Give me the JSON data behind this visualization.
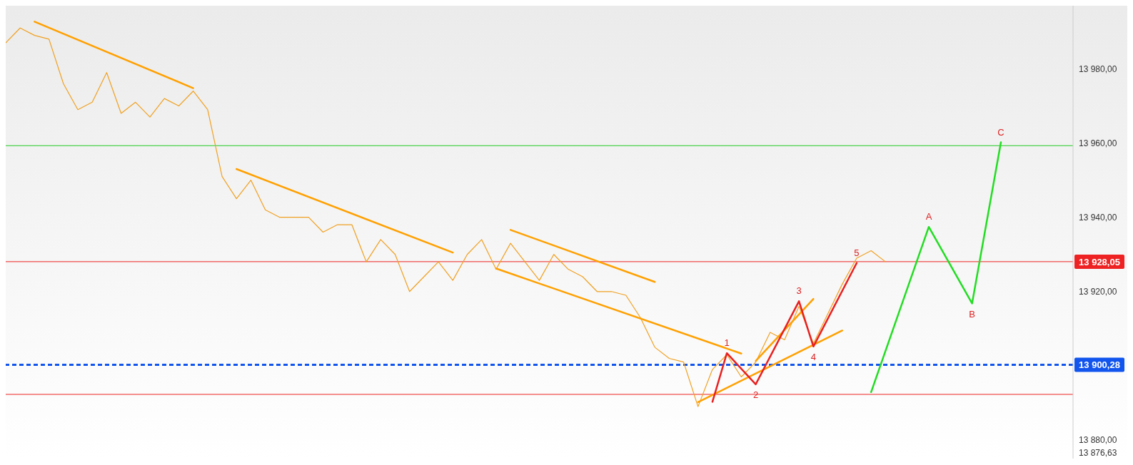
{
  "chart_data": {
    "type": "line",
    "categories": [
      null,
      null,
      null,
      null,
      null,
      null,
      null,
      null,
      null,
      null,
      null,
      null,
      null,
      null,
      null,
      null,
      null,
      null,
      null,
      null,
      null,
      null,
      null,
      null,
      null,
      null,
      null,
      null,
      null,
      null,
      null,
      null,
      null,
      null,
      null,
      null,
      null,
      null,
      null,
      null,
      null,
      null,
      null,
      null,
      null,
      null,
      null,
      null,
      null,
      null,
      null,
      null,
      null,
      null,
      null,
      null,
      null,
      null,
      null,
      null,
      null,
      null,
      null,
      null,
      null,
      null,
      null,
      null,
      null,
      null,
      null,
      null,
      null,
      null,
      null
    ],
    "ylim": [
      13875,
      13997
    ],
    "yticks": [
      {
        "value": 13876.63,
        "label": "13 876,63"
      },
      {
        "value": 13880,
        "label": "13 880,00"
      },
      {
        "value": 13900,
        "label": null
      },
      {
        "value": 13920,
        "label": "13 920,00"
      },
      {
        "value": 13940,
        "label": "13 940,00"
      },
      {
        "value": 13960,
        "label": "13 960,00"
      },
      {
        "value": 13980,
        "label": "13 980,00"
      }
    ],
    "tick_labels": "y",
    "marker": "none",
    "series": [
      {
        "color": "#f0a020",
        "values": [
          13987,
          13991,
          13989,
          13988,
          13976,
          13969,
          13971,
          13979,
          13968,
          13971,
          13967,
          13972,
          13970,
          13974,
          13969,
          13951,
          13945,
          13950,
          13942,
          13940,
          13940,
          13940,
          13936,
          13938,
          13938,
          13928,
          13934,
          13930,
          13920,
          13924,
          13928,
          13923,
          13930,
          13934,
          13926,
          13933,
          13928,
          13923,
          13930,
          13926,
          13924,
          13920,
          13920,
          13919,
          13913,
          13905,
          13902,
          13901,
          13889,
          13899,
          13903,
          13897,
          13901,
          13909,
          13907,
          13916,
          13906,
          13914,
          13922,
          13929,
          13931,
          13928,
          null,
          null,
          null,
          null,
          null,
          null,
          null,
          null,
          null,
          null,
          null,
          null,
          null
        ]
      },
      {
        "color": "#ffa000",
        "values": [
          null,
          null,
          13992.7,
          null,
          null,
          null,
          null,
          null,
          null,
          null,
          null,
          null,
          null,
          13974.8,
          null,
          null,
          null,
          null,
          null,
          null,
          null,
          null,
          null,
          null,
          null,
          null,
          null,
          null,
          null,
          null,
          null,
          null,
          null,
          null,
          null,
          null,
          null,
          null,
          null,
          null,
          null,
          null,
          null,
          null,
          null,
          null,
          null,
          null,
          null,
          null,
          null,
          null,
          null,
          null,
          null,
          null,
          null,
          null,
          null,
          null,
          null,
          null,
          null,
          null,
          null,
          null,
          null,
          null,
          null,
          null,
          null,
          null,
          null,
          null,
          null
        ]
      },
      {
        "color": "#ffa000",
        "values": [
          null,
          null,
          null,
          null,
          null,
          null,
          null,
          null,
          null,
          null,
          null,
          null,
          null,
          null,
          null,
          null,
          13953,
          null,
          null,
          null,
          null,
          null,
          null,
          null,
          null,
          null,
          null,
          null,
          null,
          null,
          null,
          13930.5,
          null,
          null,
          null,
          null,
          null,
          null,
          null,
          null,
          null,
          null,
          null,
          null,
          null,
          null,
          null,
          null,
          null,
          null,
          null,
          null,
          null,
          null,
          null,
          null,
          null,
          null,
          null,
          null,
          null,
          null,
          null,
          null,
          null,
          null,
          null,
          null,
          null,
          null,
          null,
          null,
          null,
          null,
          null
        ]
      },
      {
        "color": "#ffa000",
        "values": [
          null,
          null,
          null,
          null,
          null,
          null,
          null,
          null,
          null,
          null,
          null,
          null,
          null,
          null,
          null,
          null,
          null,
          null,
          null,
          null,
          null,
          null,
          null,
          null,
          null,
          null,
          null,
          null,
          null,
          null,
          null,
          null,
          null,
          null,
          null,
          13936.6,
          null,
          null,
          null,
          null,
          null,
          null,
          null,
          null,
          null,
          13922.6,
          null,
          null,
          null,
          null,
          null,
          null,
          null,
          null,
          null,
          null,
          null,
          null,
          null,
          null,
          null,
          null,
          null,
          null,
          null,
          null,
          null,
          null,
          null,
          null,
          null,
          null,
          null,
          null,
          null
        ]
      },
      {
        "color": "#ffa000",
        "values": [
          null,
          null,
          null,
          null,
          null,
          null,
          null,
          null,
          null,
          null,
          null,
          null,
          null,
          null,
          null,
          null,
          null,
          null,
          null,
          null,
          null,
          null,
          null,
          null,
          null,
          null,
          null,
          null,
          null,
          null,
          null,
          null,
          null,
          null,
          13926.2,
          null,
          null,
          null,
          null,
          null,
          null,
          null,
          null,
          null,
          null,
          null,
          null,
          null,
          null,
          null,
          null,
          13903.3,
          null,
          null,
          null,
          null,
          null,
          null,
          null,
          null,
          null,
          null,
          null,
          null,
          null,
          null,
          null,
          null,
          null,
          null,
          null,
          null,
          null,
          null,
          null
        ]
      },
      {
        "color": "#ffa000",
        "values": [
          null,
          null,
          null,
          null,
          null,
          null,
          null,
          null,
          null,
          null,
          null,
          null,
          null,
          null,
          null,
          null,
          null,
          null,
          null,
          null,
          null,
          null,
          null,
          null,
          null,
          null,
          null,
          null,
          null,
          null,
          null,
          null,
          null,
          null,
          null,
          null,
          null,
          null,
          null,
          null,
          null,
          null,
          null,
          null,
          null,
          null,
          null,
          null,
          13890.2,
          null,
          null,
          null,
          null,
          null,
          null,
          null,
          null,
          null,
          13909.5,
          null,
          null,
          null,
          null,
          null,
          null,
          null,
          null,
          null,
          null,
          null,
          null,
          null,
          null,
          null,
          null
        ]
      },
      {
        "color": "#ffa000",
        "values": [
          null,
          null,
          null,
          null,
          null,
          null,
          null,
          null,
          null,
          null,
          null,
          null,
          null,
          null,
          null,
          null,
          null,
          null,
          null,
          null,
          null,
          null,
          null,
          null,
          null,
          null,
          null,
          null,
          null,
          null,
          null,
          null,
          null,
          null,
          null,
          null,
          null,
          null,
          null,
          null,
          null,
          null,
          null,
          null,
          null,
          null,
          null,
          null,
          null,
          null,
          null,
          null,
          13901.3,
          null,
          null,
          null,
          13918,
          null,
          null,
          null,
          null,
          null,
          null,
          null,
          null,
          null,
          null,
          null,
          null,
          null,
          null,
          null,
          null,
          null,
          null
        ]
      },
      {
        "color": "#e82020",
        "values": [
          null,
          null,
          null,
          null,
          null,
          null,
          null,
          null,
          null,
          null,
          null,
          null,
          null,
          null,
          null,
          null,
          null,
          null,
          null,
          null,
          null,
          null,
          null,
          null,
          null,
          null,
          null,
          null,
          null,
          null,
          null,
          null,
          null,
          null,
          null,
          null,
          null,
          null,
          null,
          null,
          null,
          null,
          null,
          null,
          null,
          null,
          null,
          null,
          null,
          13890.3,
          13903.4,
          null,
          13895,
          null,
          null,
          13917.4,
          13905.2,
          null,
          null,
          13927.7,
          null,
          null,
          null,
          null,
          null,
          null,
          null,
          null,
          null,
          null,
          null,
          null,
          null,
          null,
          null
        ]
      },
      {
        "color": "#22dd22",
        "values": [
          null,
          null,
          null,
          null,
          null,
          null,
          null,
          null,
          null,
          null,
          null,
          null,
          null,
          null,
          null,
          null,
          null,
          null,
          null,
          null,
          null,
          null,
          null,
          null,
          null,
          null,
          null,
          null,
          null,
          null,
          null,
          null,
          null,
          null,
          null,
          null,
          null,
          null,
          null,
          null,
          null,
          null,
          null,
          null,
          null,
          null,
          null,
          null,
          null,
          null,
          null,
          null,
          null,
          null,
          null,
          null,
          null,
          null,
          null,
          null,
          13892.9,
          null,
          null,
          null,
          13937.4,
          null,
          null,
          13916.8,
          null,
          13960.2,
          null,
          null,
          null,
          null,
          null
        ]
      }
    ],
    "ref_lines": [
      {
        "axis": "y",
        "value": 13959.3,
        "color": "#22cc22"
      },
      {
        "axis": "y",
        "value": 13928.05,
        "color": "#ee2222",
        "label": "13 928,05"
      },
      {
        "axis": "y",
        "value": 13900.28,
        "color": "#1155ee",
        "line_style": "dashed",
        "label": "13 900,28"
      },
      {
        "axis": "y",
        "value": 13892.3,
        "color": "#ee2222"
      }
    ],
    "annotations": [
      {
        "text": "1",
        "y": 13903.4
      },
      {
        "text": "2",
        "y": 13895
      },
      {
        "text": "3",
        "y": 13917.4
      },
      {
        "text": "4",
        "y": 13905.2
      },
      {
        "text": "5",
        "y": 13927.7
      },
      {
        "text": "A",
        "y": 13937.4
      },
      {
        "text": "B",
        "y": 13916.8
      },
      {
        "text": "C",
        "y": 13960.2
      }
    ]
  }
}
